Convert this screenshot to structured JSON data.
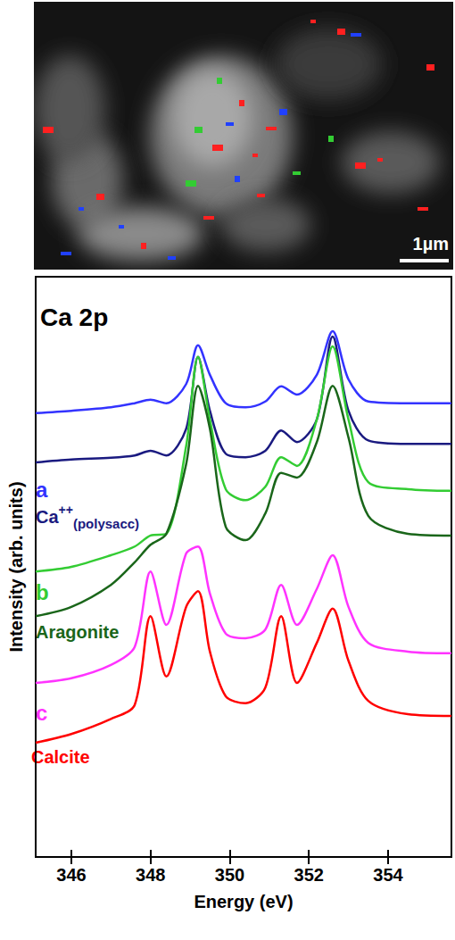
{
  "image": {
    "scale_bar": "1µm"
  },
  "chart_data": {
    "type": "line",
    "title": "Ca 2p",
    "x_label": "Energy (eV)",
    "y_label": "Intensity (arb. units)",
    "x": [
      345.1,
      346,
      347,
      347.6,
      348,
      348.4,
      348.9,
      349.2,
      349.5,
      349.9,
      350.4,
      350.9,
      351.3,
      351.7,
      352.2,
      352.6,
      353.0,
      353.5,
      354.5,
      355.6
    ],
    "xlim": [
      345.1,
      355.6
    ],
    "xticks": [
      346,
      348,
      350,
      352,
      354
    ],
    "ylim": [
      0,
      100
    ],
    "grid": false,
    "tick_labels": "x",
    "series": [
      {
        "name": "a",
        "color": "#3333ff",
        "values": [
          76.5,
          76.9,
          77.5,
          78.2,
          78.8,
          78.2,
          81.5,
          88.2,
          83.1,
          78.2,
          77.5,
          78.5,
          81.1,
          79.7,
          83.1,
          90.6,
          82.3,
          78.5,
          78.2,
          78.2
        ]
      },
      {
        "name": "Ca++(polysacc)",
        "color": "#1a1a80",
        "values": [
          68.0,
          68.5,
          68.8,
          69.2,
          70.0,
          69.2,
          73.8,
          86.2,
          76.9,
          69.5,
          68.9,
          70.0,
          73.5,
          71.5,
          75.4,
          89.7,
          76.9,
          71.8,
          71.2,
          71.2
        ]
      },
      {
        "name": "b",
        "color": "#33cc33",
        "values": [
          49.2,
          50.0,
          52.0,
          53.5,
          55.4,
          55.7,
          70.8,
          86.2,
          75.4,
          63.4,
          61.5,
          63.8,
          68.9,
          67.4,
          75.4,
          88.0,
          75.4,
          64.6,
          63.4,
          63.1
        ]
      },
      {
        "name": "Aragonite",
        "color": "#1a661a",
        "values": [
          41.5,
          43.1,
          46.9,
          50.8,
          53.8,
          55.7,
          67.7,
          81.2,
          73.8,
          56.9,
          54.6,
          59.2,
          66.2,
          65.4,
          71.5,
          81.2,
          72.3,
          58.8,
          55.7,
          55.4
        ]
      },
      {
        "name": "c",
        "color": "#ff33ff",
        "values": [
          30.0,
          30.8,
          33.1,
          36.2,
          49.2,
          40.0,
          52.3,
          53.5,
          45.4,
          38.5,
          37.7,
          39.2,
          46.9,
          40.0,
          46.2,
          52.0,
          43.1,
          36.9,
          35.4,
          35.1
        ]
      },
      {
        "name": "Calcite",
        "color": "#ff0000",
        "values": [
          19.7,
          21.2,
          23.8,
          26.2,
          41.5,
          31.1,
          43.1,
          45.8,
          35.4,
          27.7,
          26.5,
          29.2,
          41.5,
          30.0,
          36.9,
          42.8,
          33.8,
          26.9,
          24.6,
          24.3
        ]
      }
    ]
  }
}
